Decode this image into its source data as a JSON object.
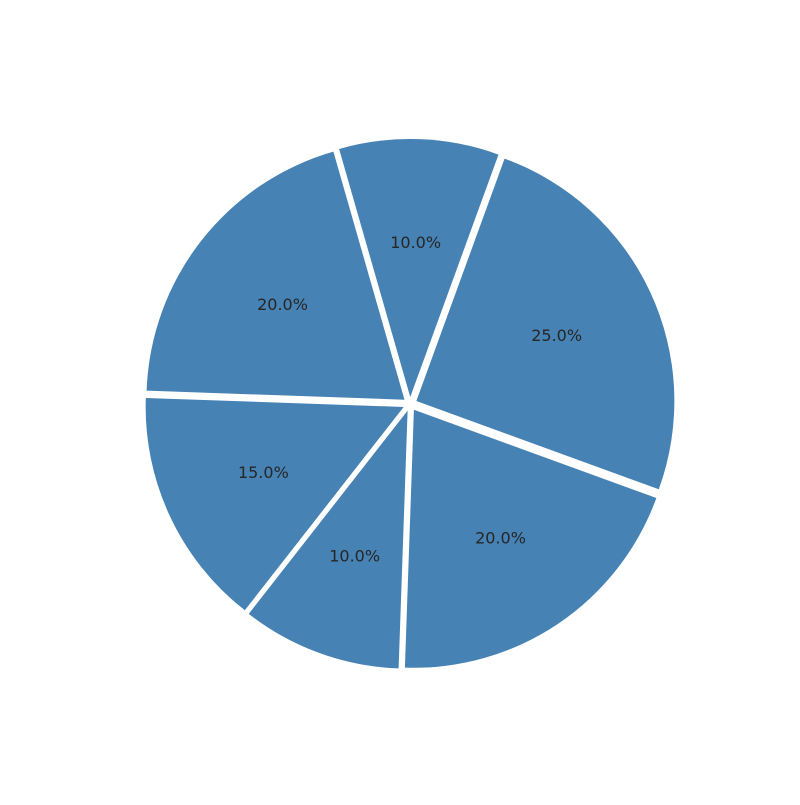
{
  "chart_data": {
    "type": "pie",
    "title": "",
    "legend": "none",
    "color": "#4682b4",
    "background": "#ffffff",
    "start_angle_deg": 90,
    "direction": "counterclockwise",
    "slices": [
      {
        "value": 10,
        "label": "10.0%"
      },
      {
        "value": 20,
        "label": "20.0%"
      },
      {
        "value": 15,
        "label": "15.0%"
      },
      {
        "value": 10,
        "label": "10.0%"
      },
      {
        "value": 20,
        "label": "20.0%"
      },
      {
        "value": 25,
        "label": "25.0%"
      }
    ],
    "start_rotation_offset_deg": -20
  }
}
